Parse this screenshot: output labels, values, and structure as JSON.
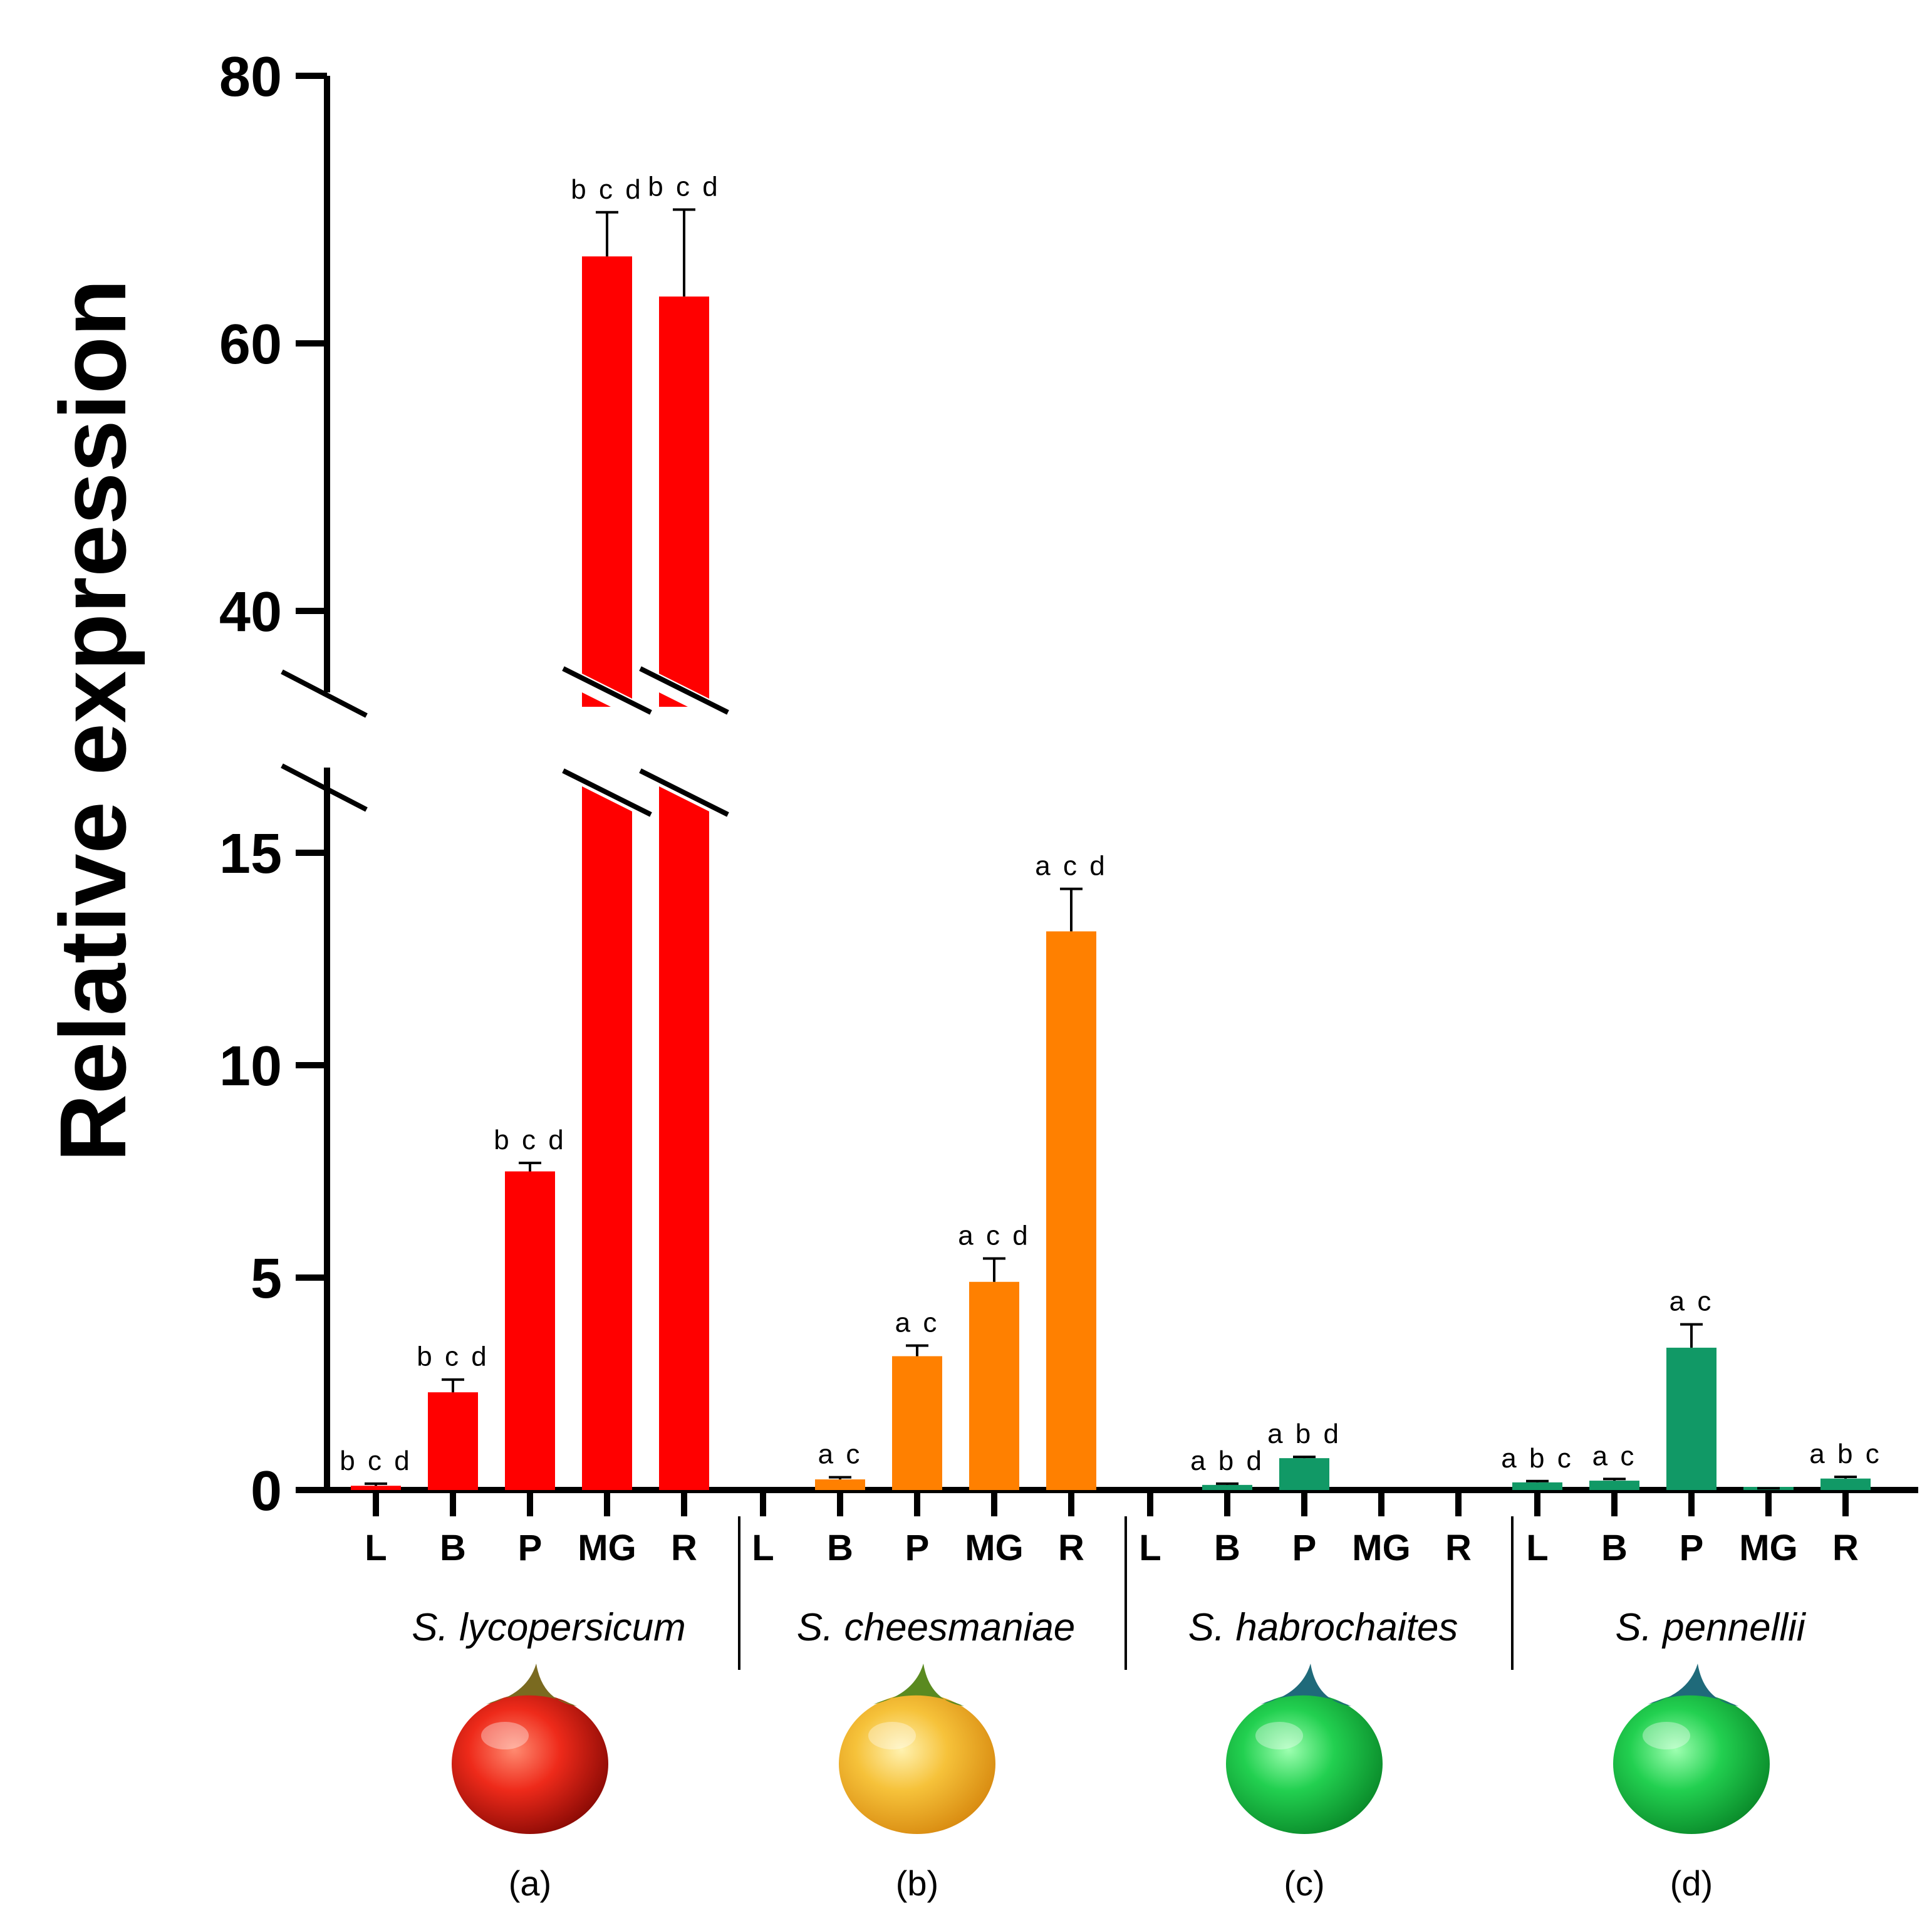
{
  "chart_data": {
    "type": "bar",
    "ylabel": "Relative expression",
    "xlabel": "",
    "title": "",
    "y_axis_break": {
      "lower_range": [
        0,
        17
      ],
      "upper_range": [
        35,
        80
      ]
    },
    "yticks": [
      0,
      5,
      10,
      15,
      40,
      60,
      80
    ],
    "grid": false,
    "categories": [
      "L",
      "B",
      "P",
      "MG",
      "R"
    ],
    "groups": [
      {
        "species": "S. lycopersicum",
        "panel": "(a)",
        "color": "#ff0000",
        "fruit_color": "red",
        "values": [
          0.1,
          2.3,
          7.5,
          66.5,
          63.5
        ],
        "errors": [
          0.05,
          0.3,
          0.2,
          3.3,
          6.5
        ],
        "letters": [
          "b c d",
          "b c d",
          "b c d",
          "b c d",
          "b c d"
        ]
      },
      {
        "species": "S. cheesmaniae",
        "panel": "(b)",
        "color": "#ff8000",
        "fruit_color": "yellow",
        "values": [
          0.0,
          0.25,
          3.15,
          4.9,
          13.15
        ],
        "errors": [
          0.0,
          0.05,
          0.25,
          0.55,
          1.0
        ],
        "letters": [
          "",
          "a c",
          "a c",
          "a c d",
          "a c d"
        ]
      },
      {
        "species": "S. habrochaites",
        "panel": "(c)",
        "color": "#119966",
        "fruit_color": "green",
        "values": [
          0.0,
          0.12,
          0.75,
          0.0,
          0.0
        ],
        "errors": [
          0.0,
          0.03,
          0.03,
          0.0,
          0.0
        ],
        "letters": [
          "",
          "a b d",
          "a b d",
          "",
          ""
        ]
      },
      {
        "species": "S. pennellii",
        "panel": "(d)",
        "color": "#119966",
        "fruit_color": "green",
        "values": [
          0.18,
          0.22,
          3.35,
          0.03,
          0.27
        ],
        "errors": [
          0.03,
          0.04,
          0.55,
          0.01,
          0.04
        ],
        "letters": [
          "a b c",
          "a c",
          "a c",
          "",
          "a b c"
        ]
      }
    ]
  }
}
